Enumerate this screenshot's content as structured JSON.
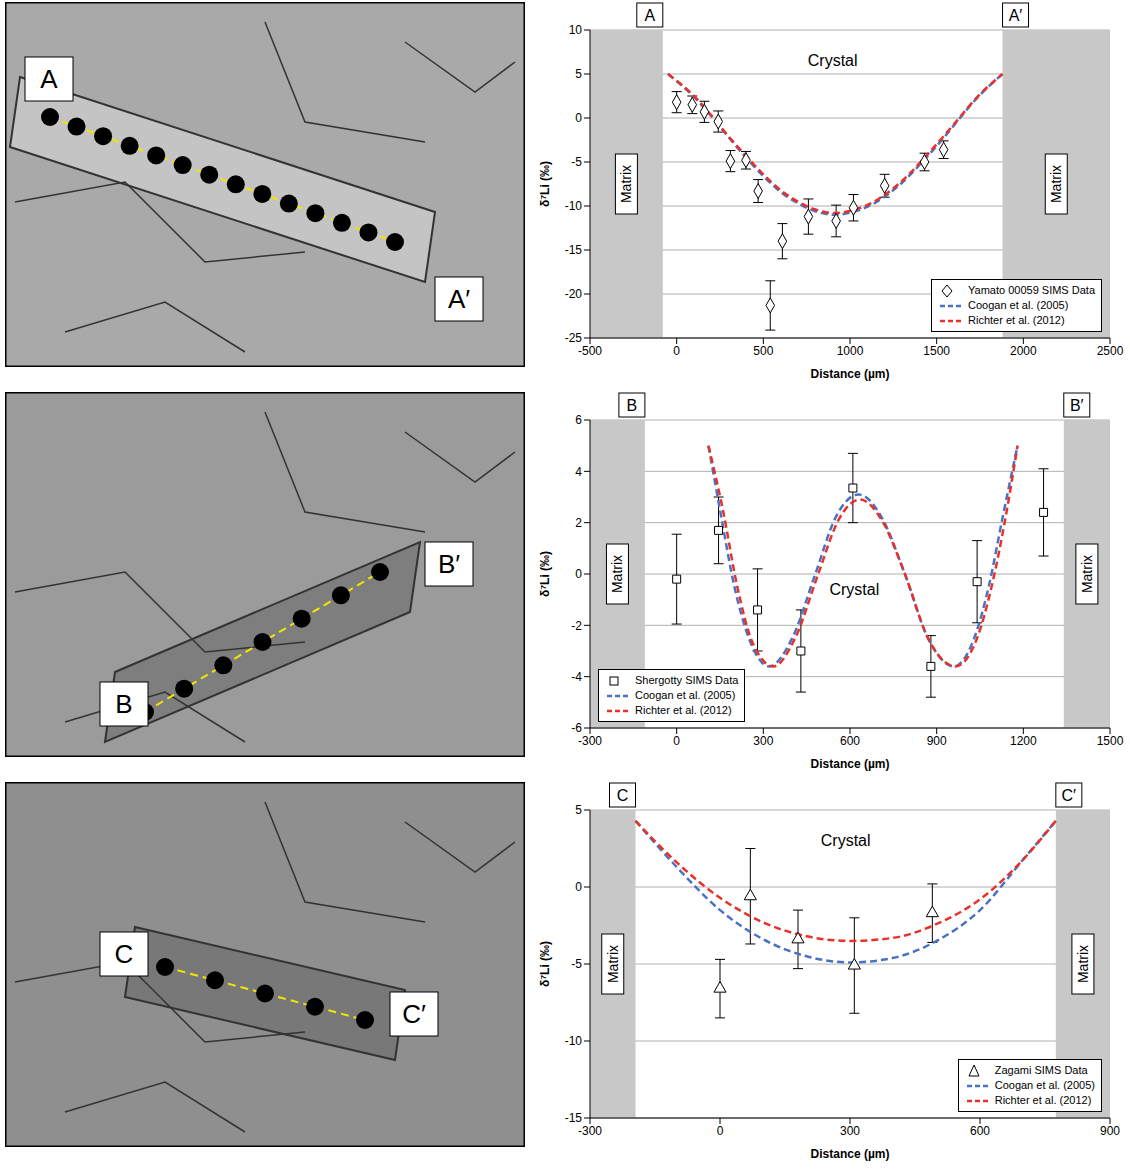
{
  "images": [
    {
      "labels": [
        "A",
        "A′"
      ]
    },
    {
      "labels": [
        "B",
        "B′"
      ]
    },
    {
      "labels": [
        "C",
        "C′"
      ]
    }
  ],
  "chart_data": [
    {
      "type": "scatter",
      "xlabel": "Distance (µm)",
      "ylabel": "δ⁷Li (‰)",
      "xlim": [
        -500,
        2500
      ],
      "xticks": [
        -500,
        0,
        500,
        1000,
        1500,
        2000,
        2500
      ],
      "ylim": [
        -25,
        10
      ],
      "yticks": [
        -25,
        -20,
        -15,
        -10,
        -5,
        0,
        5,
        10
      ],
      "grid": true,
      "legend": "lower right",
      "endpoint_labels": [
        "A",
        "A′"
      ],
      "matrix_label": "Matrix",
      "crystal_label": "Crystal",
      "matrix_regions": [
        [
          -500,
          -80
        ],
        [
          1880,
          2500
        ]
      ],
      "series": [
        {
          "name": "Yamato 00059 SIMS Data",
          "type": "scatter",
          "marker": "diamond",
          "color": "#000000",
          "x": [
            0,
            90,
            160,
            240,
            310,
            400,
            470,
            540,
            610,
            760,
            920,
            1020,
            1200,
            1430,
            1540
          ],
          "values": [
            1.8,
            1.5,
            0.7,
            -0.4,
            -4.9,
            -4.8,
            -8.3,
            -21.3,
            -14,
            -11.2,
            -11.7,
            -10.2,
            -7.7,
            -5,
            -3.6
          ],
          "errors": [
            1.2,
            1,
            1.2,
            1.2,
            1.2,
            1,
            1.3,
            2.8,
            2,
            2,
            1.8,
            1.5,
            1.3,
            1,
            1
          ]
        },
        {
          "name": "Coogan et al. (2005)",
          "type": "line",
          "line_style": "dashed",
          "color": "#4a72c4",
          "x": [
            -50,
            100,
            200,
            300,
            400,
            500,
            600,
            700,
            800,
            915,
            1030,
            1130,
            1230,
            1330,
            1430,
            1530,
            1630,
            1730,
            1880
          ],
          "values": [
            5,
            2.4,
            0.2,
            -2.2,
            -4.5,
            -6.6,
            -8.4,
            -9.7,
            -10.6,
            -11,
            -10.6,
            -9.8,
            -8.5,
            -6.8,
            -4.7,
            -2.5,
            -0.1,
            2.2,
            5
          ]
        },
        {
          "name": "Richter et al. (2012)",
          "type": "line",
          "line_style": "dashed",
          "color": "#e8312a",
          "x": [
            -50,
            100,
            200,
            300,
            400,
            500,
            600,
            700,
            800,
            915,
            1030,
            1130,
            1230,
            1330,
            1430,
            1530,
            1630,
            1730,
            1880
          ],
          "values": [
            5,
            2.5,
            0.3,
            -2.1,
            -4.3,
            -6.4,
            -8.2,
            -9.5,
            -10.4,
            -10.8,
            -10.4,
            -9.6,
            -8.3,
            -6.6,
            -4.5,
            -2.3,
            0,
            2.3,
            5
          ]
        }
      ]
    },
    {
      "type": "scatter",
      "xlabel": "Distance (µm)",
      "ylabel": "δ⁷Li (‰)",
      "xlim": [
        -300,
        1500
      ],
      "xticks": [
        -300,
        0,
        300,
        600,
        900,
        1200,
        1500
      ],
      "ylim": [
        -6,
        6
      ],
      "yticks": [
        -6,
        -4,
        -2,
        0,
        2,
        4,
        6
      ],
      "grid": true,
      "legend": "lower left",
      "endpoint_labels": [
        "B",
        "B′"
      ],
      "matrix_label": "Matrix",
      "crystal_label": "Crystal",
      "matrix_regions": [
        [
          -300,
          -110
        ],
        [
          1340,
          1500
        ]
      ],
      "series": [
        {
          "name": "Shergotty SIMS Data",
          "type": "scatter",
          "marker": "square",
          "color": "#000000",
          "x": [
            0,
            145,
            280,
            430,
            610,
            880,
            1040,
            1270
          ],
          "values": [
            -0.2,
            1.7,
            -1.4,
            -3,
            3.35,
            -3.6,
            -0.3,
            2.4
          ],
          "errors": [
            1.75,
            1.3,
            1.6,
            1.6,
            1.35,
            1.2,
            1.6,
            1.7
          ]
        },
        {
          "name": "Coogan et al. (2005)",
          "type": "line",
          "line_style": "dashed",
          "color": "#4a72c4",
          "x": [
            110,
            150,
            200,
            250,
            320,
            400,
            480,
            550,
            630,
            710,
            790,
            870,
            960,
            1030,
            1080,
            1130,
            1180
          ],
          "values": [
            5,
            2.5,
            -0.5,
            -2.5,
            -3.6,
            -2.5,
            0,
            2.2,
            3.1,
            2.2,
            0,
            -2.5,
            -3.6,
            -2.5,
            -0.5,
            2.3,
            5
          ]
        },
        {
          "name": "Richter et al. (2012)",
          "type": "line",
          "line_style": "dashed",
          "color": "#e8312a",
          "x": [
            110,
            160,
            210,
            260,
            335,
            410,
            490,
            560,
            635,
            710,
            790,
            870,
            965,
            1040,
            1090,
            1140,
            1180
          ],
          "values": [
            5,
            2.5,
            -0.5,
            -2.6,
            -3.6,
            -2.5,
            0,
            2.1,
            2.9,
            2.1,
            0,
            -2.5,
            -3.6,
            -2.5,
            -0.5,
            2.3,
            5
          ]
        }
      ]
    },
    {
      "type": "scatter",
      "xlabel": "Distance (µm)",
      "ylabel": "δ⁷Li (‰)",
      "xlim": [
        -300,
        900
      ],
      "xticks": [
        -300,
        0,
        300,
        600,
        900
      ],
      "ylim": [
        -15,
        5
      ],
      "yticks": [
        -15,
        -10,
        -5,
        0,
        5
      ],
      "grid": true,
      "legend": "lower right",
      "endpoint_labels": [
        "C",
        "C′"
      ],
      "matrix_label": "Matrix",
      "crystal_label": "Crystal",
      "matrix_regions": [
        [
          -300,
          -195
        ],
        [
          775,
          900
        ]
      ],
      "series": [
        {
          "name": "Zagami SIMS Data",
          "type": "scatter",
          "marker": "triangle",
          "color": "#000000",
          "x": [
            0,
            70,
            180,
            310,
            490
          ],
          "values": [
            -6.6,
            -0.6,
            -3.4,
            -5.1,
            -1.7
          ],
          "errors": [
            1.9,
            3.1,
            1.9,
            3.1,
            1.9
          ]
        },
        {
          "name": "Coogan et al. (2005)",
          "type": "line",
          "line_style": "dashed",
          "color": "#4a72c4",
          "x": [
            -195,
            -100,
            0,
            100,
            200,
            300,
            400,
            500,
            600,
            700,
            775
          ],
          "values": [
            4.3,
            1.3,
            -1.5,
            -3.4,
            -4.5,
            -4.9,
            -4.6,
            -3.5,
            -1.5,
            1.8,
            4.3
          ]
        },
        {
          "name": "Richter et al. (2012)",
          "type": "line",
          "line_style": "dashed",
          "color": "#e8312a",
          "x": [
            -195,
            -100,
            0,
            100,
            200,
            300,
            400,
            500,
            600,
            700,
            775
          ],
          "values": [
            4.3,
            1.6,
            -0.7,
            -2.3,
            -3.2,
            -3.5,
            -3.3,
            -2.4,
            -0.8,
            1.8,
            4.3
          ]
        }
      ]
    }
  ]
}
